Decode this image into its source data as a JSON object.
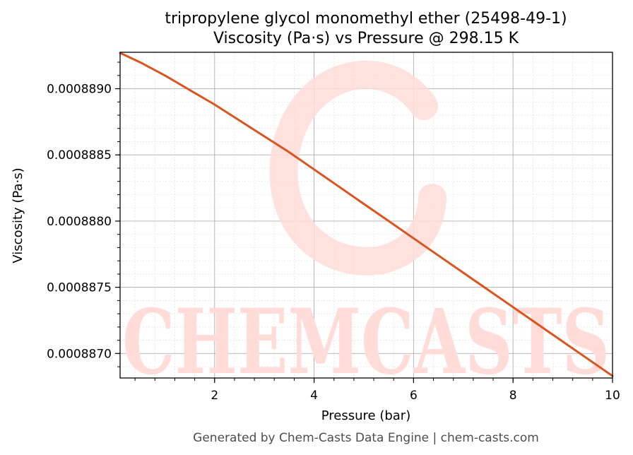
{
  "chart_data": {
    "type": "line",
    "title": "tripropylene glycol monomethyl ether (25498-49-1)",
    "subtitle": "Viscosity (Pa·s) vs Pressure @ 298.15 K",
    "xlabel": "Pressure (bar)",
    "ylabel": "Viscosity (Pa·s)",
    "xlim": [
      0.1,
      10
    ],
    "ylim": [
      0.000886815,
      0.000889275
    ],
    "x_ticks": [
      2,
      4,
      6,
      8,
      10
    ],
    "x_tick_labels": [
      "2",
      "4",
      "6",
      "8",
      "10"
    ],
    "y_ticks": [
      0.000887,
      0.0008875,
      0.000888,
      0.0008885,
      0.000889
    ],
    "y_tick_labels": [
      "0.0008870",
      "0.0008875",
      "0.0008880",
      "0.0008885",
      "0.0008890"
    ],
    "grid": true,
    "series": [
      {
        "color": "#d9541e",
        "x": [
          0.1,
          0.5,
          1,
          1.5,
          2,
          2.5,
          3,
          3.5,
          4,
          4.5,
          5,
          5.5,
          6,
          6.5,
          7,
          7.5,
          8,
          8.5,
          9,
          9.5,
          10
        ],
        "y": [
          0.00088927,
          0.0008892,
          0.0008891,
          0.00088899,
          0.00088888,
          0.00088876,
          0.00088864,
          0.00088852,
          0.00088839,
          0.00088826,
          0.00088813,
          0.000888,
          0.00088787,
          0.00088774,
          0.00088761,
          0.00088748,
          0.00088735,
          0.00088722,
          0.00088709,
          0.00088696,
          0.00088683
        ]
      }
    ]
  },
  "watermark": {
    "text": "CHEMCASTS",
    "color": "#ffdcd8"
  },
  "footer": "Generated by Chem-Casts Data Engine | chem-casts.com"
}
